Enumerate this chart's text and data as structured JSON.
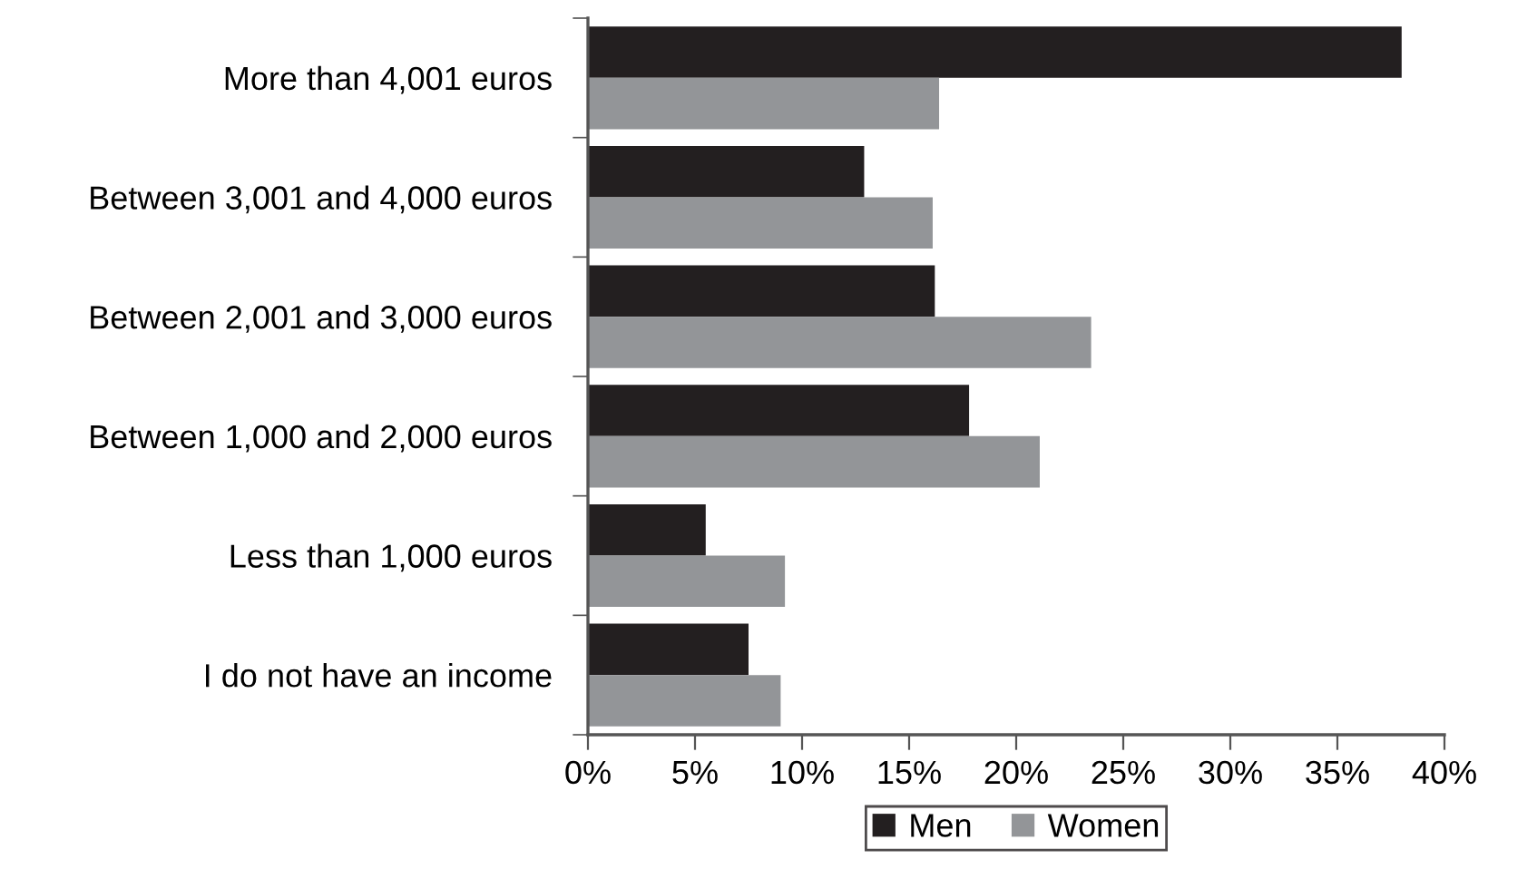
{
  "chart_data": {
    "type": "bar",
    "orientation": "horizontal",
    "categories": [
      "More than 4,001 euros",
      "Between 3,001 and 4,000 euros",
      "Between 2,001 and 3,000 euros",
      "Between 1,000 and 2,000 euros",
      "Less than 1,000 euros",
      "I do not have an income"
    ],
    "series": [
      {
        "name": "Men",
        "color": "#231f20",
        "values": [
          38.0,
          12.9,
          16.2,
          17.8,
          5.5,
          7.5
        ]
      },
      {
        "name": "Women",
        "color": "#939598",
        "values": [
          16.4,
          16.1,
          23.5,
          21.1,
          9.2,
          9.0
        ]
      }
    ],
    "xlim": [
      0,
      40
    ],
    "xticks": [
      {
        "value": 0,
        "label": "0%"
      },
      {
        "value": 5,
        "label": "5%"
      },
      {
        "value": 10,
        "label": "10%"
      },
      {
        "value": 15,
        "label": "15%"
      },
      {
        "value": 20,
        "label": "20%"
      },
      {
        "value": 25,
        "label": "25%"
      },
      {
        "value": 30,
        "label": "30%"
      },
      {
        "value": 35,
        "label": "35%"
      },
      {
        "value": 40,
        "label": "40%"
      }
    ],
    "grid": false,
    "legend": "bottom"
  }
}
